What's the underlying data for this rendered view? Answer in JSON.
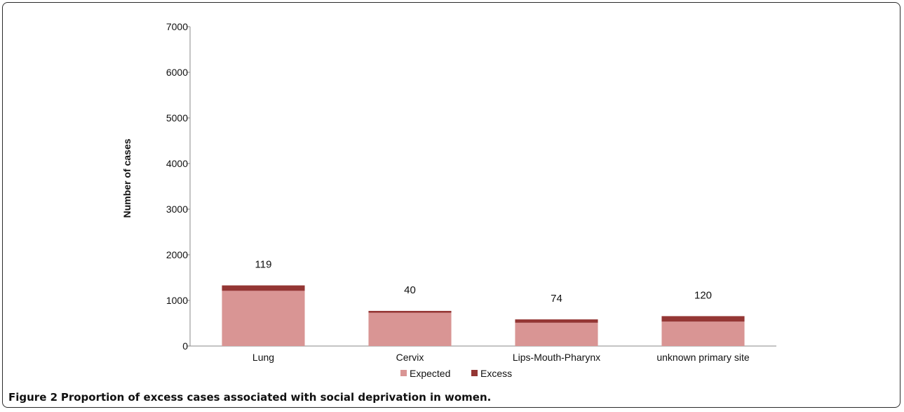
{
  "chart_data": {
    "type": "bar",
    "stacked": true,
    "categories": [
      "Lung",
      "Cervix",
      "Lips-Mouth-Pharynx",
      "unknown primary site"
    ],
    "series": [
      {
        "name": "Expected",
        "values": [
          1210,
          730,
          510,
          535
        ],
        "color": "#d99594"
      },
      {
        "name": "Excess",
        "values": [
          119,
          40,
          74,
          120
        ],
        "color": "#943634"
      }
    ],
    "data_labels": [
      "119",
      "40",
      "74",
      "120"
    ],
    "ylabel": "Number of cases",
    "ylim": [
      0,
      7000
    ],
    "yticks": [
      0,
      1000,
      2000,
      3000,
      4000,
      5000,
      6000,
      7000
    ],
    "grid": false,
    "legend_position": "bottom"
  },
  "caption": {
    "label": "Figure 2",
    "text": "Proportion of excess cases associated with social deprivation in women."
  }
}
